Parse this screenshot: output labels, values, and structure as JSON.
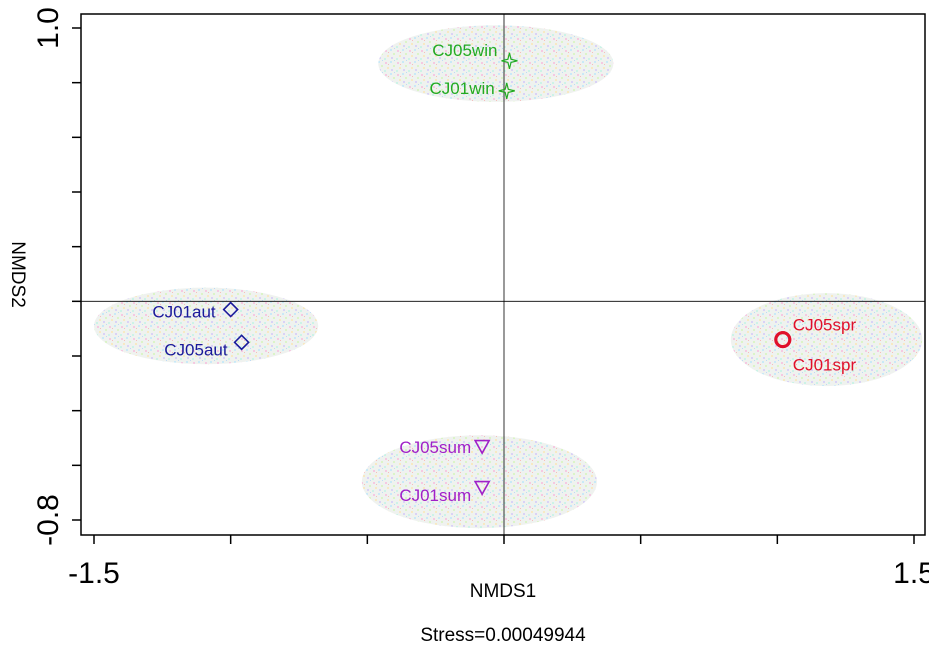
{
  "chart_data": {
    "type": "scatter",
    "title": "",
    "xlabel": "NMDS1",
    "ylabel": "NMDS2",
    "xlim": [
      -1.5,
      1.5
    ],
    "ylim": [
      -0.8,
      1.0
    ],
    "xticks_labeled": [
      "-1.5",
      "1.5"
    ],
    "yticks_labeled": [
      "1.0",
      "-0.8"
    ],
    "x_ticks": [
      -1.5,
      -1.0,
      -0.5,
      0.0,
      0.5,
      1.0,
      1.5
    ],
    "y_ticks": [
      1.0,
      0.8,
      0.6,
      0.4,
      0.2,
      0.0,
      -0.2,
      -0.4,
      -0.6,
      -0.8
    ],
    "reference_lines": {
      "x": 0,
      "y": 0
    },
    "grid": false,
    "legend": "none",
    "annotation": "Stress=0.00049944",
    "groups": [
      {
        "color": "#22aa22",
        "marker": "star",
        "ellipse": {
          "cx": -0.03,
          "cy": 0.87,
          "rx": 0.43,
          "ry": 0.14
        },
        "points": [
          {
            "label": "CJ05win",
            "x": 0.02,
            "y": 0.88
          },
          {
            "label": "CJ01win",
            "x": 0.01,
            "y": 0.77
          }
        ]
      },
      {
        "color": "#1a1a9a",
        "marker": "diamond",
        "ellipse": {
          "cx": -1.09,
          "cy": -0.09,
          "rx": 0.41,
          "ry": 0.14
        },
        "points": [
          {
            "label": "CJ01aut",
            "x": -1.0,
            "y": -0.03
          },
          {
            "label": "CJ05aut",
            "x": -0.96,
            "y": -0.15
          }
        ]
      },
      {
        "color": "#e0102a",
        "marker": "circle",
        "ellipse": {
          "cx": 1.18,
          "cy": -0.14,
          "rx": 0.35,
          "ry": 0.17
        },
        "points": [
          {
            "label": "CJ05spr",
            "x": 1.02,
            "y": -0.14
          },
          {
            "label": "CJ01spr",
            "x": 1.02,
            "y": -0.14
          }
        ]
      },
      {
        "color": "#a020c8",
        "marker": "triangle-down",
        "ellipse": {
          "cx": -0.09,
          "cy": -0.66,
          "rx": 0.43,
          "ry": 0.17
        },
        "points": [
          {
            "label": "CJ05sum",
            "x": -0.08,
            "y": -0.53
          },
          {
            "label": "CJ01sum",
            "x": -0.08,
            "y": -0.68
          }
        ]
      }
    ]
  }
}
